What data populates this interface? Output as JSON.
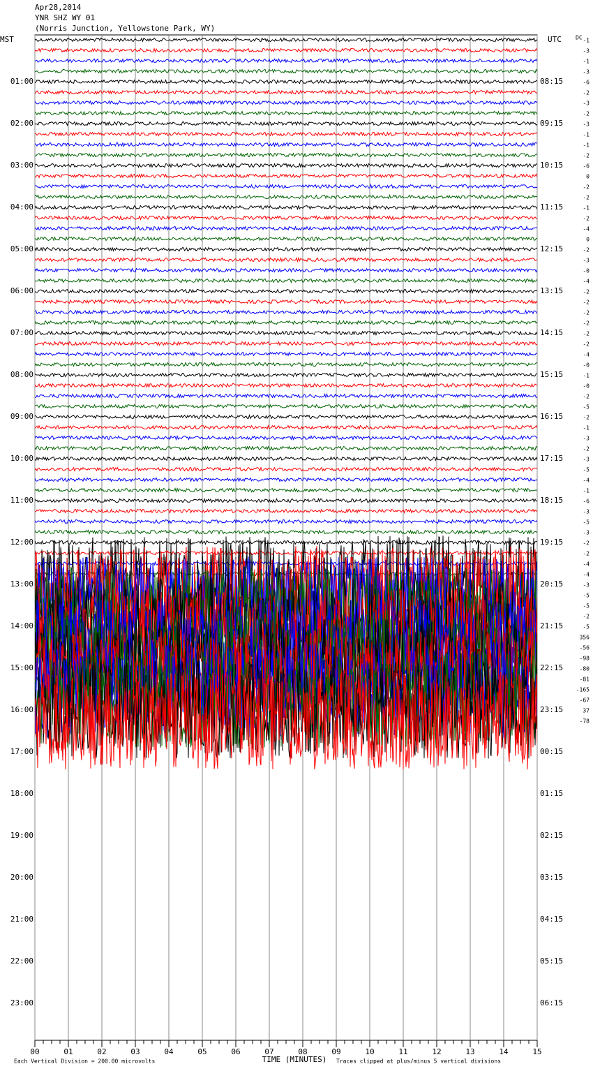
{
  "header": {
    "date": "Apr28,2014",
    "station": "YNR SHZ WY 01",
    "location": "(Norris Junction, Yellowstone Park, WY)"
  },
  "labels": {
    "left_zone": "MST",
    "right_zone": "UTC",
    "dc": "DC"
  },
  "hours_left": [
    "01:00",
    "02:00",
    "03:00",
    "04:00",
    "05:00",
    "06:00",
    "07:00",
    "08:00",
    "09:00",
    "10:00",
    "11:00",
    "12:00",
    "13:00",
    "14:00",
    "15:00",
    "16:00",
    "17:00",
    "18:00",
    "19:00",
    "20:00",
    "21:00",
    "22:00",
    "23:00"
  ],
  "hours_right": [
    "08:15",
    "09:15",
    "10:15",
    "11:15",
    "12:15",
    "13:15",
    "14:15",
    "15:15",
    "16:15",
    "17:15",
    "18:15",
    "19:15",
    "20:15",
    "21:15",
    "22:15",
    "23:15",
    "00:15",
    "01:15",
    "02:15",
    "03:15",
    "04:15",
    "05:15",
    "06:15"
  ],
  "dc_offsets": [
    "-1",
    "-3",
    "-1",
    "-3",
    "-6",
    "-2",
    "-3",
    "-2",
    "-3",
    "-1",
    "-1",
    "-2",
    "-6",
    "0",
    "-2",
    "-2",
    "-1",
    "-2",
    "-4",
    "0",
    "-2",
    "-3",
    "-0",
    "-4",
    "-2",
    "-2",
    "-2",
    "-2",
    "-2",
    "-2",
    "-4",
    "-0",
    "-1",
    "-0",
    "-2",
    "-5",
    "-2",
    "-1",
    "-3",
    "-2",
    "-3",
    "-5",
    "-4",
    "-1",
    "-6",
    "-3",
    "-5",
    "-3",
    "-2",
    "-2",
    "-4",
    "-4",
    "-3",
    "-5",
    "-5",
    "-2",
    "-5",
    "356",
    "-56",
    "-98",
    "-80",
    "-81",
    "-165",
    "-67",
    "37",
    "-78"
  ],
  "x_ticks": [
    "00",
    "01",
    "02",
    "03",
    "04",
    "05",
    "06",
    "07",
    "08",
    "09",
    "10",
    "11",
    "12",
    "13",
    "14",
    "15"
  ],
  "x_axis_label": "TIME (MINUTES)",
  "footer": {
    "scale": "Each Vertical Division =  200.00 microvolts",
    "clip": "Traces clipped at plus/minus 5 vertical divisions"
  }
}
